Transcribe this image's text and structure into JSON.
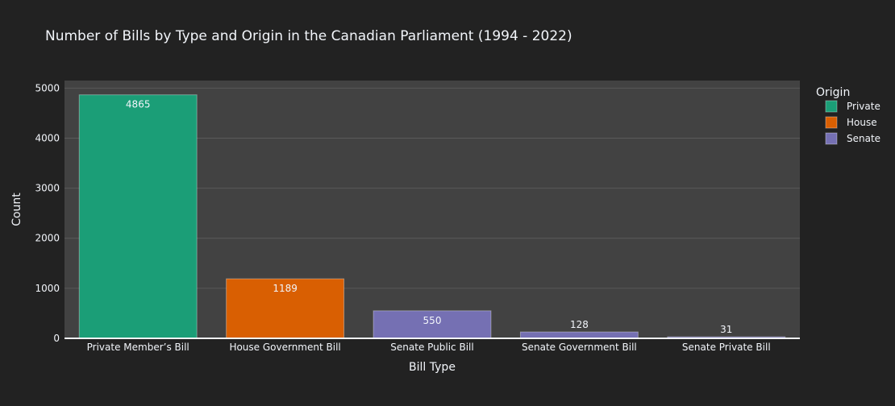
{
  "chart_data": {
    "type": "bar",
    "title": "Number of Bills by Type and Origin in the Canadian Parliament (1994 - 2022)",
    "xlabel": "Bill Type",
    "ylabel": "Count",
    "ylim": [
      0,
      5150
    ],
    "yticks": [
      0,
      1000,
      2000,
      3000,
      4000,
      5000
    ],
    "grid": true,
    "legend": {
      "title": "Origin",
      "placement": "top-right",
      "entries": [
        {
          "name": "Private",
          "color": "#1b9e77"
        },
        {
          "name": "House",
          "color": "#d95f02"
        },
        {
          "name": "Senate",
          "color": "#7570b3"
        }
      ]
    },
    "categories": [
      "Private Member’s Bill",
      "House Government Bill",
      "Senate Public Bill",
      "Senate Government Bill",
      "Senate Private Bill"
    ],
    "values": [
      4865,
      1189,
      550,
      128,
      31
    ],
    "origins": [
      "Private",
      "House",
      "Senate",
      "Senate",
      "Senate"
    ],
    "data_labels": [
      "4865",
      "1189",
      "550",
      "128",
      "31"
    ]
  },
  "colors": {
    "background": "#222222",
    "plot_background": "#424242",
    "grid": "#5a5a5a",
    "text": "#f2f5fa"
  }
}
